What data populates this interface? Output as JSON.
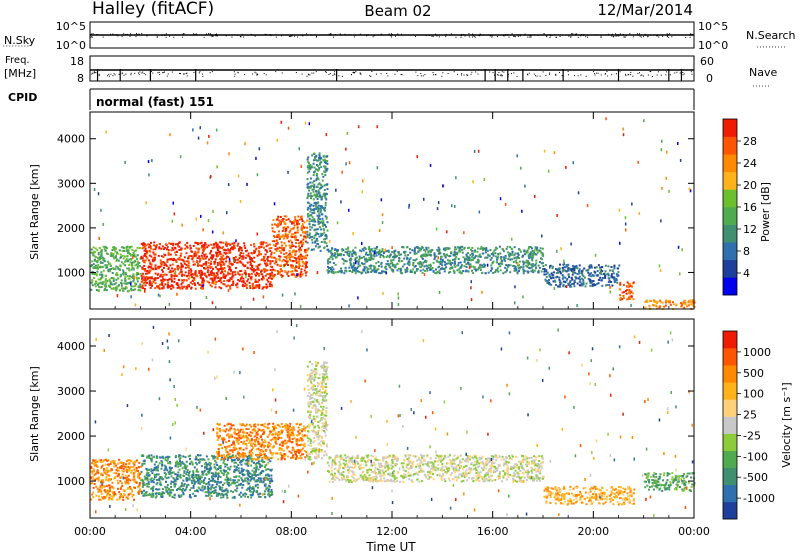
{
  "header": {
    "station": "Halley (fitACF)",
    "beam": "Beam 02",
    "date": "12/Mar/2014"
  },
  "params": {
    "nsky_label": "N.Sky",
    "nsky_ticks": [
      "10^5",
      "10^0"
    ],
    "nsearch_label": "N.Search",
    "nsearch_ticks": [
      "10^5",
      "10^0"
    ],
    "freq_label_line1": "Freq.",
    "freq_label_line2": "[MHz]",
    "freq_ticks": [
      "18",
      "8"
    ],
    "nave_label": "Nave",
    "nave_ticks": [
      "60",
      "0"
    ],
    "cpid_label": "CPID",
    "cpid_value": "normal (fast) 151"
  },
  "colors": {
    "power_scale": [
      "#0000ee",
      "#1e3f9a",
      "#2f6fb0",
      "#3f8f70",
      "#4faa50",
      "#6cc030",
      "#ffb21a",
      "#ff8a00",
      "#ff5500",
      "#ee1c00"
    ],
    "velocity_scale": [
      "#ee1c00",
      "#ff5500",
      "#ff8a00",
      "#ffb21a",
      "#ffd27a",
      "#c8c8c8",
      "#8ccc3a",
      "#4faa50",
      "#3f8f70",
      "#2f6fb0",
      "#1e3f9a"
    ]
  },
  "chart_data": [
    {
      "type": "heatmap",
      "title": "",
      "xlabel": "Time UT",
      "ylabel": "Slant Range [km]",
      "xlim": [
        "00:00",
        "24:00"
      ],
      "ylim": [
        180,
        4600
      ],
      "x_tick_labels": [
        "00:00",
        "04:00",
        "08:00",
        "12:00",
        "16:00",
        "20:00",
        "00:00"
      ],
      "y_tick_labels": [
        "1000",
        "2000",
        "3000",
        "4000"
      ],
      "colorbar": {
        "label": "Power [dB]",
        "tick_labels": [
          "4",
          "8",
          "12",
          "16",
          "20",
          "24",
          "28"
        ]
      },
      "regions": [
        {
          "time_start": 0.0,
          "time_end": 2.0,
          "range_start": 600,
          "range_end": 1600,
          "level": 4
        },
        {
          "time_start": 2.0,
          "time_end": 7.2,
          "range_start": 650,
          "range_end": 1700,
          "level": 9
        },
        {
          "time_start": 7.2,
          "time_end": 8.6,
          "range_start": 900,
          "range_end": 2300,
          "level": 8
        },
        {
          "time_start": 8.6,
          "time_end": 9.4,
          "range_start": 1500,
          "range_end": 3700,
          "level": 3
        },
        {
          "time_start": 9.4,
          "time_end": 18.0,
          "range_start": 1000,
          "range_end": 1600,
          "level": 3
        },
        {
          "time_start": 18.0,
          "time_end": 21.0,
          "range_start": 700,
          "range_end": 1200,
          "level": 2
        },
        {
          "time_start": 21.0,
          "time_end": 21.6,
          "range_start": 400,
          "range_end": 800,
          "level": 8
        },
        {
          "time_start": 22.0,
          "time_end": 24.0,
          "range_start": 200,
          "range_end": 400,
          "level": 7
        }
      ]
    },
    {
      "type": "heatmap",
      "title": "",
      "xlabel": "Time UT",
      "ylabel": "Slant Range [km]",
      "xlim": [
        "00:00",
        "24:00"
      ],
      "ylim": [
        180,
        4600
      ],
      "x_tick_labels": [
        "00:00",
        "04:00",
        "08:00",
        "12:00",
        "16:00",
        "20:00",
        "00:00"
      ],
      "y_tick_labels": [
        "1000",
        "2000",
        "3000",
        "4000"
      ],
      "colorbar": {
        "label": "Velocity [m s⁻¹]",
        "tick_labels": [
          "1000",
          "500",
          "100",
          "25",
          "-25",
          "-100",
          "-500",
          "-1000"
        ]
      },
      "regions": [
        {
          "time_start": 0.0,
          "time_end": 2.0,
          "range_start": 600,
          "range_end": 1500,
          "level": 2
        },
        {
          "time_start": 2.0,
          "time_end": 7.2,
          "range_start": 650,
          "range_end": 1600,
          "level": 8
        },
        {
          "time_start": 5.0,
          "time_end": 8.6,
          "range_start": 1500,
          "range_end": 2300,
          "level": 2
        },
        {
          "time_start": 8.6,
          "time_end": 9.4,
          "range_start": 1500,
          "range_end": 3700,
          "level": 5
        },
        {
          "time_start": 9.4,
          "time_end": 18.0,
          "range_start": 1000,
          "range_end": 1600,
          "level": 5
        },
        {
          "time_start": 18.0,
          "time_end": 21.6,
          "range_start": 500,
          "range_end": 900,
          "level": 3
        },
        {
          "time_start": 22.0,
          "time_end": 24.0,
          "range_start": 800,
          "range_end": 1200,
          "level": 7
        }
      ]
    }
  ]
}
